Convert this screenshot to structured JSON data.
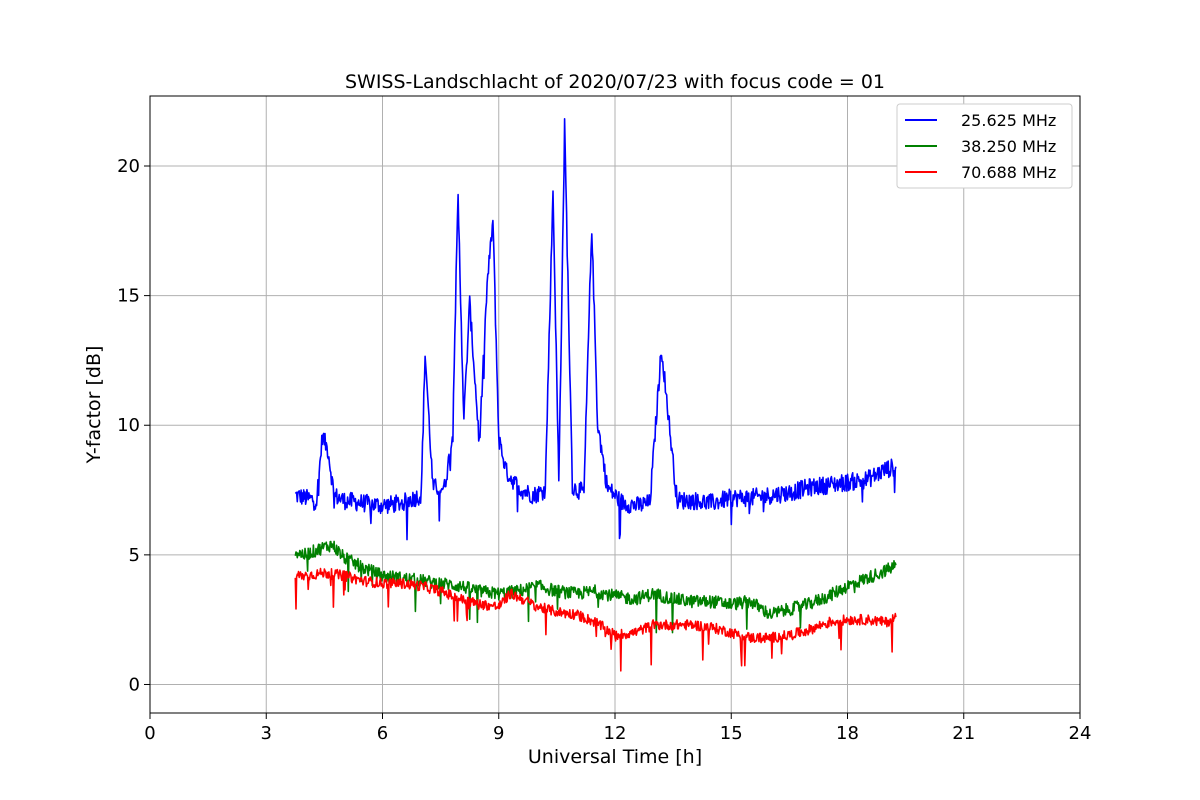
{
  "chart_data": {
    "type": "line",
    "title": "SWISS-Landschlacht of 2020/07/23 with focus code = 01",
    "xlabel": "Universal Time [h]",
    "ylabel": "Y-factor [dB]",
    "xlim": [
      0,
      24
    ],
    "ylim": [
      -1.1,
      22.7
    ],
    "xticks": [
      "0",
      "3",
      "6",
      "9",
      "12",
      "15",
      "18",
      "21",
      "24"
    ],
    "yticks": [
      "0",
      "5",
      "10",
      "15",
      "20"
    ],
    "grid": true,
    "legend_position": "top-right",
    "series": [
      {
        "name": "25.625 MHz",
        "color": "#0000ff",
        "x": [
          3.75,
          4.0,
          4.3,
          4.45,
          4.6,
          4.75,
          5.0,
          5.5,
          6.0,
          6.5,
          7.0,
          7.1,
          7.3,
          7.6,
          7.8,
          7.95,
          8.1,
          8.25,
          8.5,
          8.7,
          8.85,
          9.0,
          9.2,
          9.4,
          9.6,
          9.9,
          10.2,
          10.4,
          10.55,
          10.7,
          10.9,
          11.2,
          11.4,
          11.55,
          11.8,
          12.2,
          12.6,
          12.9,
          13.2,
          13.6,
          14.0,
          14.5,
          15.0,
          15.5,
          16.0,
          16.5,
          17.0,
          17.5,
          18.0,
          18.5,
          19.0,
          19.25
        ],
        "y": [
          7.3,
          7.2,
          7.1,
          9.6,
          9.0,
          7.3,
          7.1,
          7.0,
          6.9,
          7.0,
          7.3,
          12.8,
          7.6,
          7.6,
          9.5,
          18.7,
          10.2,
          14.7,
          9.3,
          15.4,
          17.9,
          9.5,
          8.2,
          7.8,
          7.5,
          7.3,
          7.5,
          19.1,
          7.8,
          21.5,
          7.6,
          7.4,
          17.7,
          10.1,
          7.6,
          7.0,
          6.9,
          7.0,
          13.0,
          7.1,
          7.1,
          7.0,
          7.2,
          7.2,
          7.3,
          7.4,
          7.6,
          7.7,
          7.8,
          7.9,
          8.3,
          8.4
        ]
      },
      {
        "name": "38.250 MHz",
        "color": "#008000",
        "x": [
          3.75,
          4.0,
          4.5,
          4.7,
          5.0,
          5.5,
          6.0,
          6.5,
          7.0,
          7.5,
          8.0,
          8.5,
          9.0,
          9.5,
          10.0,
          10.5,
          11.0,
          11.5,
          12.0,
          12.5,
          13.0,
          13.5,
          14.0,
          14.5,
          15.0,
          15.5,
          16.0,
          16.5,
          17.0,
          17.5,
          18.0,
          18.5,
          19.0,
          19.25
        ],
        "y": [
          5.1,
          5.0,
          5.3,
          5.4,
          4.9,
          4.5,
          4.2,
          4.1,
          4.0,
          3.9,
          3.8,
          3.6,
          3.5,
          3.6,
          3.8,
          3.6,
          3.5,
          3.6,
          3.4,
          3.3,
          3.5,
          3.3,
          3.2,
          3.2,
          3.1,
          3.2,
          2.7,
          2.9,
          3.1,
          3.4,
          3.8,
          4.1,
          4.4,
          4.6
        ]
      },
      {
        "name": "70.688 MHz",
        "color": "#ff0000",
        "x": [
          3.75,
          4.0,
          4.5,
          5.0,
          5.5,
          6.0,
          6.5,
          7.0,
          7.5,
          8.0,
          8.5,
          9.0,
          9.3,
          9.6,
          10.0,
          10.5,
          11.0,
          11.5,
          12.0,
          12.5,
          13.0,
          13.5,
          14.0,
          14.5,
          15.0,
          15.5,
          16.0,
          16.5,
          17.0,
          17.5,
          18.0,
          18.5,
          19.0,
          19.25
        ],
        "y": [
          4.2,
          4.2,
          4.3,
          4.2,
          4.0,
          3.9,
          3.9,
          3.8,
          3.6,
          3.3,
          3.1,
          3.0,
          3.5,
          3.3,
          3.0,
          2.8,
          2.7,
          2.4,
          1.9,
          2.0,
          2.3,
          2.3,
          2.3,
          2.2,
          2.0,
          1.8,
          1.8,
          1.9,
          2.1,
          2.4,
          2.5,
          2.5,
          2.4,
          2.6
        ]
      }
    ]
  }
}
